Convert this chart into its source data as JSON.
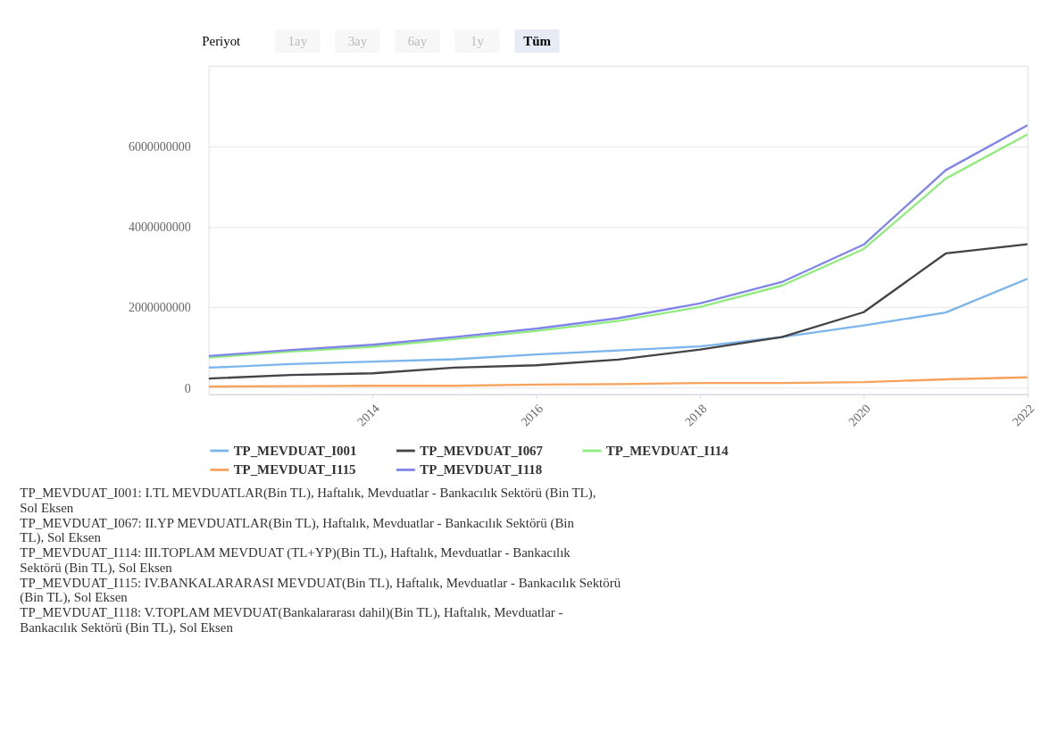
{
  "chart_data": {
    "type": "line",
    "annotations": [
      "Periyot",
      "1ay",
      "3ay",
      "6ay",
      "1y",
      "Tüm",
      "TP_MEVDUAT_I001: I.TL MEVDUATLAR(Bin TL), Haftalık, Mevduatlar - Bankacılık Sektörü (Bin TL), Sol Eksen",
      "TP_MEVDUAT_I067: II.YP MEVDUATLAR(Bin TL), Haftalık, Mevduatlar - Bankacılık Sektörü (Bin TL), Sol Eksen",
      "TP_MEVDUAT_I114: III.TOPLAM MEVDUAT (TL+YP)(Bin TL), Haftalık, Mevduatlar - Bankacılık Sektörü (Bin TL), Sol Eksen",
      "TP_MEVDUAT_I115: IV.BANKALARARASI MEVDUAT(Bin TL), Haftalık, Mevduatlar - Bankacılık Sektörü (Bin TL), Sol Eksen",
      "TP_MEVDUAT_I118: V.TOPLAM MEVDUAT(Bankalararası dahil)(Bin TL), Haftalık, Mevduatlar - Bankacılık Sektörü (Bin TL), Sol Eksen"
    ],
    "x": [
      "2012",
      "2013",
      "2014",
      "2015",
      "2016",
      "2017",
      "2018",
      "2019",
      "2020",
      "2021",
      "2022"
    ],
    "series": [
      {
        "name": "TP_MEVDUAT_I001",
        "color": "#7cb5ec",
        "values": [
          500000000,
          590000000,
          650000000,
          710000000,
          830000000,
          930000000,
          1030000000,
          1260000000,
          1550000000,
          1870000000,
          2710000000
        ]
      },
      {
        "name": "TP_MEVDUAT_I067",
        "color": "#434348",
        "values": [
          230000000,
          320000000,
          360000000,
          500000000,
          560000000,
          700000000,
          950000000,
          1260000000,
          1880000000,
          3340000000,
          3570000000
        ]
      },
      {
        "name": "TP_MEVDUAT_I114",
        "color": "#90ed7d",
        "values": [
          750000000,
          900000000,
          1020000000,
          1210000000,
          1410000000,
          1660000000,
          2010000000,
          2540000000,
          3450000000,
          5200000000,
          6300000000
        ]
      },
      {
        "name": "TP_MEVDUAT_I115",
        "color": "#f7a35c",
        "values": [
          30000000,
          40000000,
          50000000,
          50000000,
          80000000,
          90000000,
          120000000,
          120000000,
          140000000,
          210000000,
          260000000
        ]
      },
      {
        "name": "TP_MEVDUAT_I118",
        "color": "#8085e9",
        "values": [
          790000000,
          940000000,
          1070000000,
          1260000000,
          1470000000,
          1730000000,
          2100000000,
          2630000000,
          3560000000,
          5410000000,
          6530000000
        ]
      }
    ],
    "xlim": [
      "2012",
      "2022"
    ],
    "xticks": [
      "2014",
      "2016",
      "2018",
      "2020",
      "2022"
    ],
    "ylim": [
      -160000000,
      8000000000
    ],
    "yticks": [
      0,
      2000000000,
      4000000000,
      6000000000,
      {
        "value": 8000000000,
        "label": null
      }
    ],
    "grid": "y",
    "legend": "bottom",
    "marker": "none",
    "line_style": "solid"
  }
}
